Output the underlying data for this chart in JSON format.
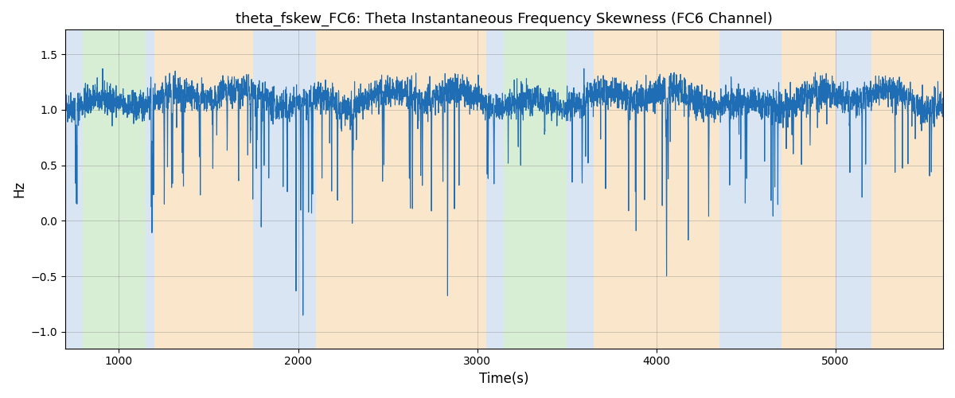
{
  "title": "theta_fskew_FC6: Theta Instantaneous Frequency Skewness (FC6 Channel)",
  "xlabel": "Time(s)",
  "ylabel": "Hz",
  "xlim": [
    700,
    5600
  ],
  "ylim": [
    -1.15,
    1.72
  ],
  "yticks": [
    -1.0,
    -0.5,
    0.0,
    0.5,
    1.0,
    1.5
  ],
  "xticks": [
    1000,
    2000,
    3000,
    4000,
    5000
  ],
  "line_color": "#1f6eb5",
  "line_width": 0.8,
  "bg_bands": [
    {
      "start": 700,
      "end": 800,
      "color": "#aec6e8",
      "alpha": 0.45
    },
    {
      "start": 800,
      "end": 1150,
      "color": "#a8d8a0",
      "alpha": 0.45
    },
    {
      "start": 1150,
      "end": 1200,
      "color": "#aec6e8",
      "alpha": 0.45
    },
    {
      "start": 1200,
      "end": 1750,
      "color": "#f5c98a",
      "alpha": 0.45
    },
    {
      "start": 1750,
      "end": 2100,
      "color": "#aec6e8",
      "alpha": 0.45
    },
    {
      "start": 2100,
      "end": 3050,
      "color": "#f5c98a",
      "alpha": 0.45
    },
    {
      "start": 3050,
      "end": 3150,
      "color": "#aec6e8",
      "alpha": 0.45
    },
    {
      "start": 3150,
      "end": 3500,
      "color": "#a8d8a0",
      "alpha": 0.45
    },
    {
      "start": 3500,
      "end": 3650,
      "color": "#aec6e8",
      "alpha": 0.45
    },
    {
      "start": 3650,
      "end": 4350,
      "color": "#f5c98a",
      "alpha": 0.45
    },
    {
      "start": 4350,
      "end": 4700,
      "color": "#aec6e8",
      "alpha": 0.45
    },
    {
      "start": 4700,
      "end": 5000,
      "color": "#f5c98a",
      "alpha": 0.45
    },
    {
      "start": 5000,
      "end": 5200,
      "color": "#aec6e8",
      "alpha": 0.45
    },
    {
      "start": 5200,
      "end": 5600,
      "color": "#f5c98a",
      "alpha": 0.45
    }
  ],
  "time_start": 700,
  "time_end": 5600,
  "n_points": 4900,
  "seed": 42,
  "spike_seed": 99
}
